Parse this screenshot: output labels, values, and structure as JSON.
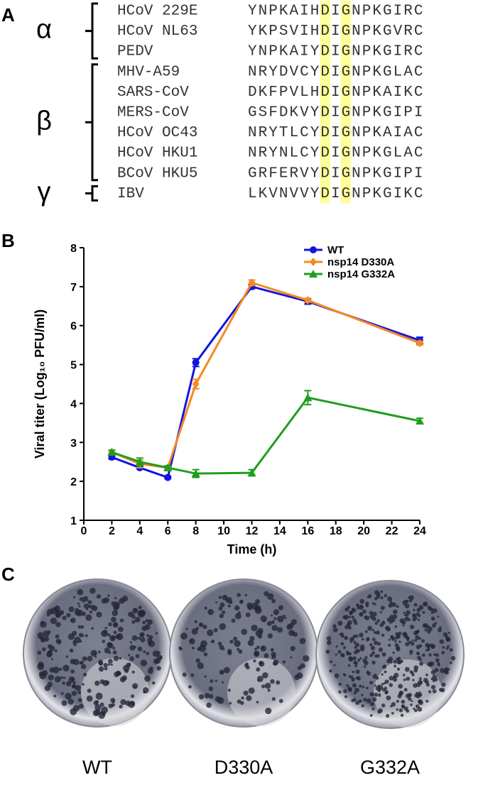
{
  "panel_labels": [
    "A",
    "B",
    "C"
  ],
  "alignment": {
    "highlight_color": "#ffff99",
    "highlight_columns": [
      7,
      9
    ],
    "groups": [
      {
        "label": "α",
        "rows": [
          {
            "name": "HCoV 229E",
            "sequence": "YNPKAIHDIGNPKGIRC"
          },
          {
            "name": "HCoV NL63",
            "sequence": "YKPSVIHDIGNPKGVRC"
          },
          {
            "name": "PEDV",
            "sequence": "YNPKAIYDIGNPKGIRC"
          }
        ]
      },
      {
        "label": "β",
        "rows": [
          {
            "name": "MHV-A59",
            "sequence": "NRYDVCYDIGNPKGLAC"
          },
          {
            "name": "SARS-CoV",
            "sequence": "DKFPVLHDIGNPKAIKC"
          },
          {
            "name": "MERS-CoV",
            "sequence": "GSFDKVYDIGNPKGIPI"
          },
          {
            "name": "HCoV OC43",
            "sequence": "NRYTLCYDIGNPKAIAC"
          },
          {
            "name": "HCoV HKU1",
            "sequence": "NRYNLCYDIGNPKGLAC"
          },
          {
            "name": "BCoV HKU5",
            "sequence": "GRFERVYDIGNPKGIPI"
          }
        ]
      },
      {
        "label": "γ",
        "rows": [
          {
            "name": "IBV",
            "sequence": "LKVNVVYDIGNPKGIKC"
          }
        ]
      }
    ]
  },
  "chart_data": {
    "type": "line",
    "xlabel": "Time (h)",
    "ylabel": "Viral titer (Log₁₀ PFU/ml)",
    "x": [
      2,
      4,
      6,
      8,
      12,
      16,
      24
    ],
    "xlim": [
      0,
      24
    ],
    "xticks": [
      0,
      2,
      4,
      6,
      8,
      10,
      12,
      14,
      16,
      18,
      20,
      22,
      24
    ],
    "ylim": [
      1,
      8
    ],
    "yticks": [
      1,
      2,
      3,
      4,
      5,
      6,
      7,
      8
    ],
    "legend": "center right",
    "series": [
      {
        "name": "WT",
        "color": "#1414e0",
        "marker": "circle",
        "values": [
          2.62,
          2.35,
          2.1,
          5.05,
          7.0,
          6.62,
          5.62
        ],
        "errors": [
          0.05,
          0.03,
          0.03,
          0.1,
          0.05,
          0.07,
          0.08
        ]
      },
      {
        "name": "nsp14 D330A",
        "color": "#f58a1f",
        "marker": "diamond",
        "values": [
          2.75,
          2.45,
          2.35,
          4.5,
          7.1,
          6.65,
          5.55
        ],
        "errors": [
          0.05,
          0.1,
          0.05,
          0.12,
          0.07,
          0.05,
          0.05
        ]
      },
      {
        "name": "nsp14 G332A",
        "color": "#1e9e1e",
        "marker": "triangle",
        "values": [
          2.75,
          2.5,
          2.35,
          2.2,
          2.22,
          4.15,
          3.55
        ],
        "errors": [
          0.05,
          0.1,
          0.05,
          0.1,
          0.08,
          0.18,
          0.07
        ]
      }
    ]
  },
  "plates": {
    "labels": [
      "WT",
      "D330A",
      "G332A"
    ]
  }
}
